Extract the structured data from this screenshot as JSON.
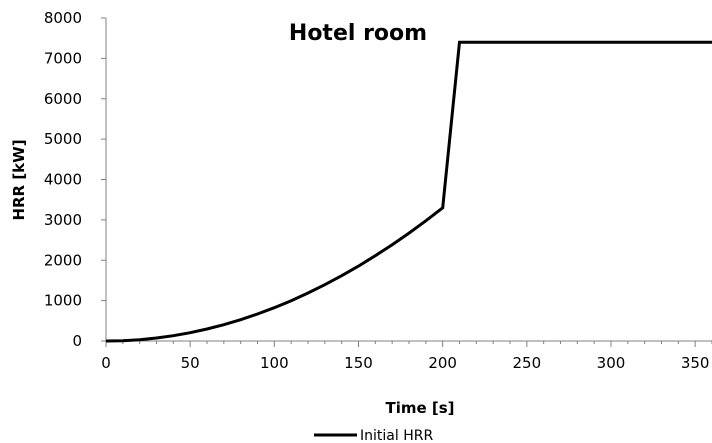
{
  "chart_data": {
    "type": "line",
    "title": "Hotel room",
    "xlabel": "Time [s]",
    "ylabel": "HRR [kW]",
    "xlim": [
      0,
      360
    ],
    "ylim": [
      0,
      8000
    ],
    "x_ticks": [
      0,
      50,
      100,
      150,
      200,
      250,
      300,
      350
    ],
    "y_ticks": [
      0,
      1000,
      2000,
      3000,
      4000,
      5000,
      6000,
      7000,
      8000
    ],
    "grid": false,
    "legend_position": "bottom",
    "line_color": "#000000",
    "series": [
      {
        "name": "Initial HRR",
        "x": [
          0,
          10,
          20,
          30,
          40,
          50,
          60,
          70,
          80,
          90,
          100,
          110,
          120,
          130,
          140,
          150,
          160,
          170,
          180,
          190,
          200,
          210,
          360
        ],
        "y": [
          0,
          8,
          33,
          74,
          132,
          206,
          297,
          404,
          528,
          668,
          825,
          998,
          1188,
          1394,
          1617,
          1856,
          2112,
          2384,
          2673,
          2978,
          3300,
          7400,
          7400
        ]
      }
    ]
  }
}
